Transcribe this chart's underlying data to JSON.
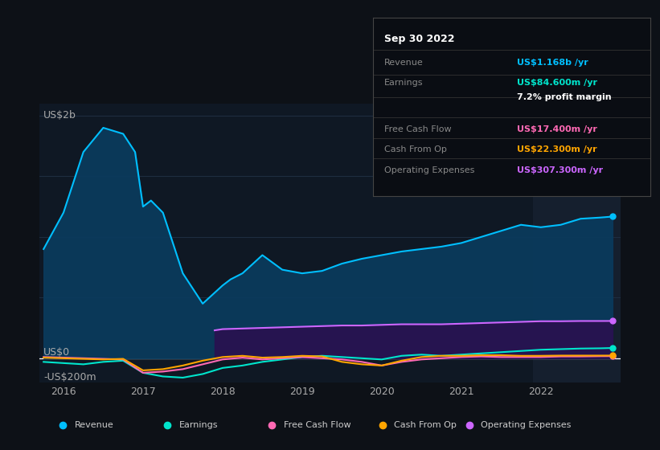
{
  "bg_color": "#0d1117",
  "plot_bg": "#0f1824",
  "highlight_bg": "#1a2535",
  "grid_color": "#1e2d40",
  "zero_line_color": "#ffffff",
  "y_label": "US$2b",
  "y_label_zero": "US$0",
  "y_label_neg": "-US$200m",
  "x_ticks": [
    2016,
    2017,
    2018,
    2019,
    2020,
    2021,
    2022
  ],
  "ylim": [
    -200,
    2100
  ],
  "xlim_start": 2015.7,
  "xlim_end": 2023.0,
  "highlight_start": 2021.9,
  "highlight_end": 2023.0,
  "info_box": {
    "title": "Sep 30 2022",
    "rows": [
      {
        "label": "Revenue",
        "value": "US$1.168b /yr",
        "value_color": "#00bfff"
      },
      {
        "label": "Earnings",
        "value": "US$84.600m /yr",
        "value_color": "#00e5cc"
      },
      {
        "label": "",
        "value": "7.2% profit margin",
        "value_color": "#ffffff"
      },
      {
        "label": "Free Cash Flow",
        "value": "US$17.400m /yr",
        "value_color": "#ff69b4"
      },
      {
        "label": "Cash From Op",
        "value": "US$22.300m /yr",
        "value_color": "#ffa500"
      },
      {
        "label": "Operating Expenses",
        "value": "US$307.300m /yr",
        "value_color": "#cc66ff"
      }
    ]
  },
  "series": {
    "revenue": {
      "color": "#00bfff",
      "fill_color": "#0a3a5c",
      "label": "Revenue",
      "x": [
        2015.75,
        2016.0,
        2016.25,
        2016.5,
        2016.75,
        2016.9,
        2017.0,
        2017.1,
        2017.25,
        2017.5,
        2017.75,
        2018.0,
        2018.1,
        2018.25,
        2018.5,
        2018.75,
        2019.0,
        2019.25,
        2019.5,
        2019.75,
        2020.0,
        2020.25,
        2020.5,
        2020.75,
        2021.0,
        2021.25,
        2021.5,
        2021.75,
        2022.0,
        2022.25,
        2022.5,
        2022.75,
        2022.9
      ],
      "y": [
        900,
        1200,
        1700,
        1900,
        1850,
        1700,
        1250,
        1300,
        1200,
        700,
        450,
        600,
        650,
        700,
        850,
        730,
        700,
        720,
        780,
        820,
        850,
        880,
        900,
        920,
        950,
        1000,
        1050,
        1100,
        1080,
        1100,
        1150,
        1160,
        1168
      ]
    },
    "earnings": {
      "color": "#00e5cc",
      "label": "Earnings",
      "x": [
        2015.75,
        2016.0,
        2016.25,
        2016.5,
        2016.75,
        2017.0,
        2017.25,
        2017.5,
        2017.75,
        2018.0,
        2018.25,
        2018.5,
        2018.75,
        2019.0,
        2019.25,
        2019.5,
        2019.75,
        2020.0,
        2020.25,
        2020.5,
        2020.75,
        2021.0,
        2021.25,
        2021.5,
        2021.75,
        2022.0,
        2022.25,
        2022.5,
        2022.75,
        2022.9
      ],
      "y": [
        -30,
        -40,
        -50,
        -30,
        -20,
        -120,
        -150,
        -160,
        -130,
        -80,
        -60,
        -30,
        -10,
        10,
        20,
        10,
        0,
        -10,
        20,
        30,
        20,
        30,
        40,
        50,
        60,
        70,
        75,
        80,
        82,
        84.6
      ]
    },
    "free_cash_flow": {
      "color": "#ff69b4",
      "label": "Free Cash Flow",
      "x": [
        2015.75,
        2016.0,
        2016.25,
        2016.5,
        2016.75,
        2017.0,
        2017.25,
        2017.5,
        2017.75,
        2018.0,
        2018.25,
        2018.5,
        2018.75,
        2019.0,
        2019.25,
        2019.5,
        2019.75,
        2020.0,
        2020.25,
        2020.5,
        2020.75,
        2021.0,
        2021.25,
        2021.5,
        2021.75,
        2022.0,
        2022.25,
        2022.5,
        2022.75,
        2022.9
      ],
      "y": [
        10,
        5,
        0,
        -5,
        -10,
        -120,
        -110,
        -90,
        -50,
        -10,
        5,
        -10,
        0,
        10,
        0,
        -10,
        -30,
        -60,
        -30,
        -10,
        0,
        10,
        15,
        10,
        10,
        10,
        15,
        15,
        17,
        17.4
      ]
    },
    "cash_from_op": {
      "color": "#ffa500",
      "label": "Cash From Op",
      "x": [
        2015.75,
        2016.0,
        2016.25,
        2016.5,
        2016.75,
        2017.0,
        2017.25,
        2017.5,
        2017.75,
        2018.0,
        2018.25,
        2018.5,
        2018.75,
        2019.0,
        2019.25,
        2019.5,
        2019.75,
        2020.0,
        2020.25,
        2020.5,
        2020.75,
        2021.0,
        2021.25,
        2021.5,
        2021.75,
        2022.0,
        2022.25,
        2022.5,
        2022.75,
        2022.9
      ],
      "y": [
        5,
        0,
        -5,
        -10,
        -5,
        -100,
        -90,
        -60,
        -20,
        10,
        20,
        5,
        10,
        20,
        15,
        -30,
        -50,
        -60,
        -20,
        10,
        20,
        20,
        25,
        25,
        20,
        20,
        22,
        22,
        22,
        22.3
      ]
    },
    "operating_expenses": {
      "color": "#cc66ff",
      "fill_color": "#2a1050",
      "label": "Operating Expenses",
      "x": [
        2017.9,
        2018.0,
        2018.25,
        2018.5,
        2018.75,
        2019.0,
        2019.25,
        2019.5,
        2019.75,
        2020.0,
        2020.25,
        2020.5,
        2020.75,
        2021.0,
        2021.25,
        2021.5,
        2021.75,
        2022.0,
        2022.25,
        2022.5,
        2022.75,
        2022.9
      ],
      "y": [
        230,
        240,
        245,
        250,
        255,
        260,
        265,
        270,
        270,
        275,
        280,
        280,
        280,
        285,
        290,
        295,
        300,
        305,
        305,
        307,
        307,
        307.3
      ]
    }
  },
  "legend": [
    {
      "label": "Revenue",
      "color": "#00bfff"
    },
    {
      "label": "Earnings",
      "color": "#00e5cc"
    },
    {
      "label": "Free Cash Flow",
      "color": "#ff69b4"
    },
    {
      "label": "Cash From Op",
      "color": "#ffa500"
    },
    {
      "label": "Operating Expenses",
      "color": "#cc66ff"
    }
  ]
}
